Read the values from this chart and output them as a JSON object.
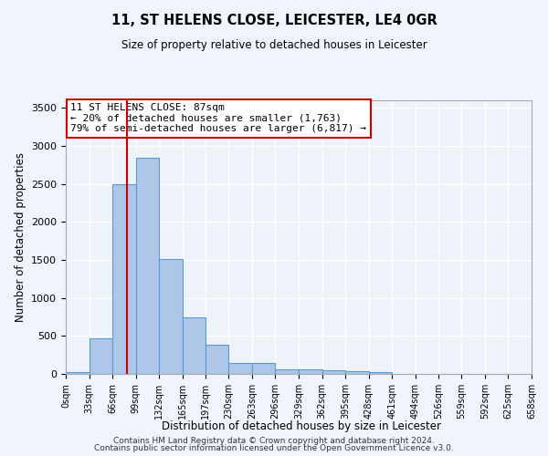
{
  "title1": "11, ST HELENS CLOSE, LEICESTER, LE4 0GR",
  "title2": "Size of property relative to detached houses in Leicester",
  "xlabel": "Distribution of detached houses by size in Leicester",
  "ylabel": "Number of detached properties",
  "bar_values": [
    20,
    470,
    2500,
    2850,
    1510,
    740,
    390,
    145,
    140,
    60,
    55,
    45,
    40,
    30,
    0,
    0,
    0,
    0,
    0,
    0
  ],
  "bar_edges": [
    0,
    33,
    66,
    99,
    132,
    165,
    197,
    230,
    263,
    296,
    329,
    362,
    395,
    428,
    461,
    494,
    526,
    559,
    592,
    625,
    658
  ],
  "tick_labels": [
    "0sqm",
    "33sqm",
    "66sqm",
    "99sqm",
    "132sqm",
    "165sqm",
    "197sqm",
    "230sqm",
    "263sqm",
    "296sqm",
    "329sqm",
    "362sqm",
    "395sqm",
    "428sqm",
    "461sqm",
    "494sqm",
    "526sqm",
    "559sqm",
    "592sqm",
    "625sqm",
    "658sqm"
  ],
  "bar_color": "#aec6e8",
  "bar_edgecolor": "#5b9bd5",
  "ylim": [
    0,
    3600
  ],
  "yticks": [
    0,
    500,
    1000,
    1500,
    2000,
    2500,
    3000,
    3500
  ],
  "property_size": 87,
  "red_line_color": "#cc0000",
  "annotation_text": "11 ST HELENS CLOSE: 87sqm\n← 20% of detached houses are smaller (1,763)\n79% of semi-detached houses are larger (6,817) →",
  "annotation_box_color": "#ffffff",
  "annotation_box_edgecolor": "#cc0000",
  "bg_color": "#eef2f9",
  "grid_color": "#ffffff",
  "footer1": "Contains HM Land Registry data © Crown copyright and database right 2024.",
  "footer2": "Contains public sector information licensed under the Open Government Licence v3.0."
}
